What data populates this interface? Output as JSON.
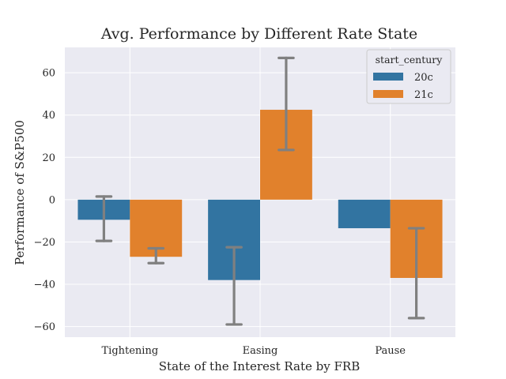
{
  "chart_data": {
    "type": "bar",
    "title": "Avg. Performance by Different Rate State",
    "xlabel": "State of the Interest Rate by FRB",
    "ylabel": "Performance of S&P500",
    "categories": [
      "Tightening",
      "Easing",
      "Pause"
    ],
    "ylim": [
      -65,
      72
    ],
    "yticks": [
      -60,
      -40,
      -20,
      0,
      20,
      40,
      60
    ],
    "ytick_labels": [
      "−60",
      "−40",
      "−20",
      "0",
      "20",
      "40",
      "60"
    ],
    "grid": true,
    "legend": {
      "title": "start_century",
      "placement": "top-right"
    },
    "series": [
      {
        "name": "20c",
        "color": "#3274a1",
        "values": [
          -9.5,
          -38,
          -13.5
        ],
        "error_low": [
          -19.5,
          -59,
          null
        ],
        "error_high": [
          1.5,
          -22.5,
          null
        ]
      },
      {
        "name": "21c",
        "color": "#e1812c",
        "values": [
          -27,
          42.5,
          -37
        ],
        "error_low": [
          -30,
          23.5,
          -56
        ],
        "error_high": [
          -23,
          67,
          -13.5
        ]
      }
    ]
  }
}
